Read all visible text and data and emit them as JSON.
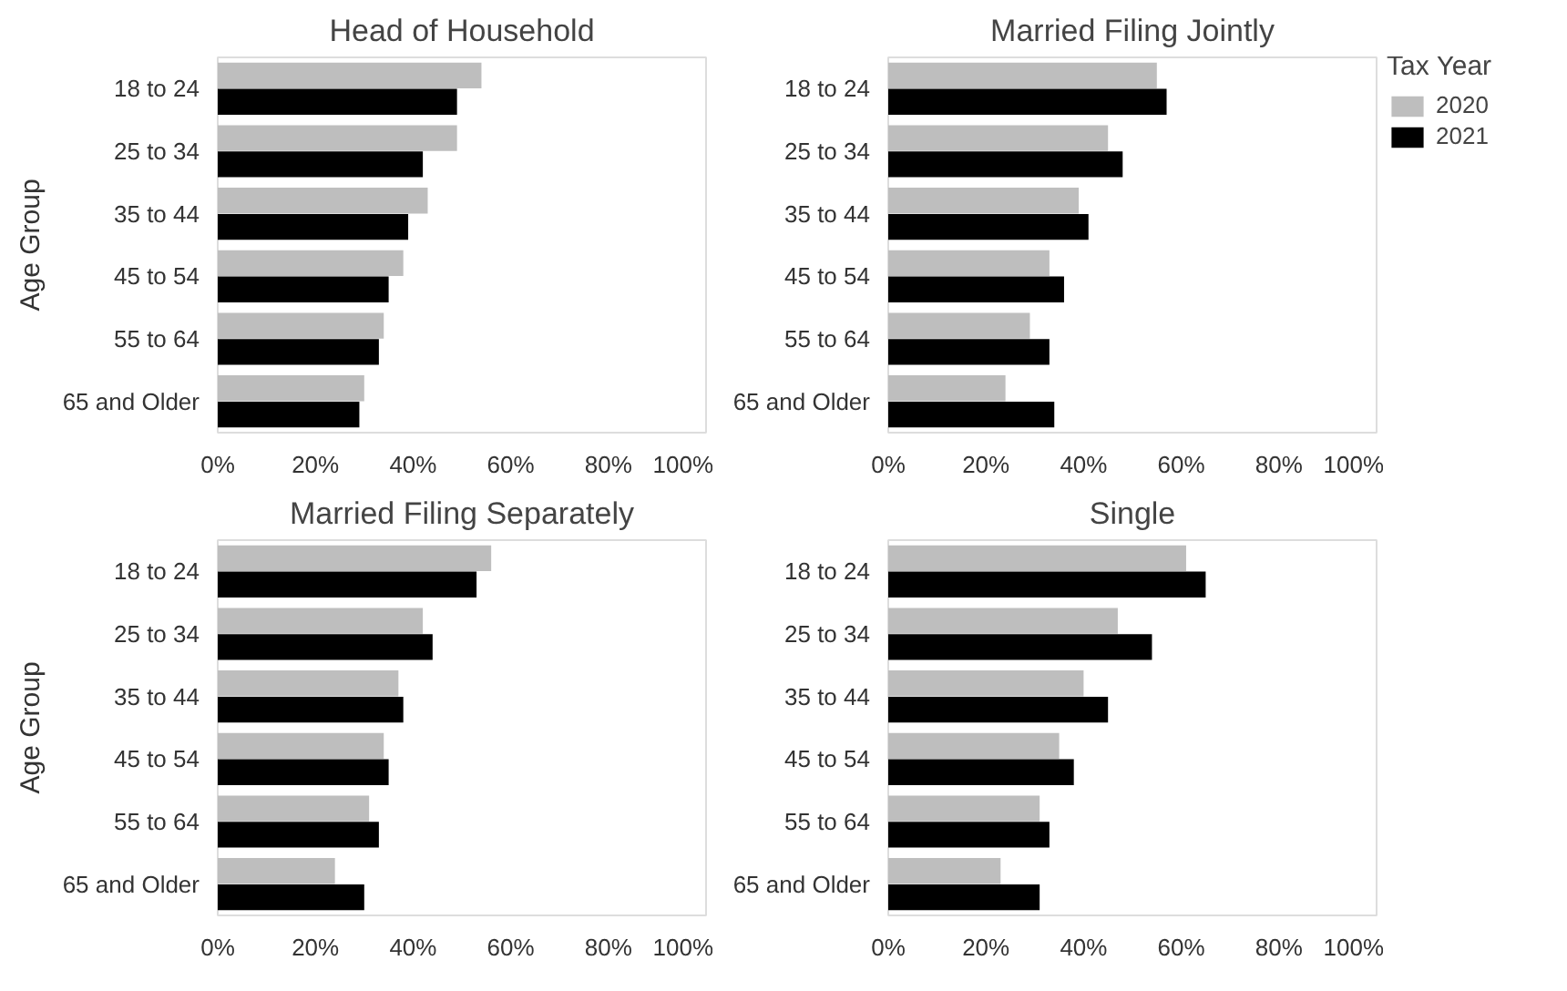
{
  "chart_data": [
    {
      "type": "bar",
      "orientation": "horizontal",
      "title": "Head of Household",
      "ylabel": "Age Group",
      "categories": [
        "18 to 24",
        "25 to 34",
        "35 to 44",
        "45 to 54",
        "55 to 64",
        "65 and Older"
      ],
      "xlim": [
        0,
        100
      ],
      "xticks": [
        {
          "value": 0,
          "label": "0%"
        },
        {
          "value": 20,
          "label": "20%"
        },
        {
          "value": 40,
          "label": "40%"
        },
        {
          "value": 60,
          "label": "60%"
        },
        {
          "value": 80,
          "label": "80%"
        },
        {
          "value": 100,
          "label": "100%"
        }
      ],
      "grid": false,
      "series": [
        {
          "color": "#bebebe",
          "values": [
            54,
            49,
            43,
            38,
            34,
            30
          ]
        },
        {
          "color": "#000000",
          "values": [
            49,
            42,
            39,
            35,
            33,
            29
          ]
        }
      ]
    },
    {
      "type": "bar",
      "orientation": "horizontal",
      "title": "Married Filing Jointly",
      "legend": "right",
      "legend_title": "Tax Year",
      "categories": [
        "18 to 24",
        "25 to 34",
        "35 to 44",
        "45 to 54",
        "55 to 64",
        "65 and Older"
      ],
      "xlim": [
        0,
        100
      ],
      "xticks": [
        {
          "value": 0,
          "label": "0%"
        },
        {
          "value": 20,
          "label": "20%"
        },
        {
          "value": 40,
          "label": "40%"
        },
        {
          "value": 60,
          "label": "60%"
        },
        {
          "value": 80,
          "label": "80%"
        },
        {
          "value": 100,
          "label": "100%"
        }
      ],
      "grid": false,
      "series": [
        {
          "name": "2020",
          "color": "#bebebe",
          "values": [
            55,
            45,
            39,
            33,
            29,
            24
          ]
        },
        {
          "name": "2021",
          "color": "#000000",
          "values": [
            57,
            48,
            41,
            36,
            33,
            34
          ]
        }
      ]
    },
    {
      "type": "bar",
      "orientation": "horizontal",
      "title": "Married Filing Separately",
      "ylabel": "Age Group",
      "categories": [
        "18 to 24",
        "25 to 34",
        "35 to 44",
        "45 to 54",
        "55 to 64",
        "65 and Older"
      ],
      "xlim": [
        0,
        100
      ],
      "xticks": [
        {
          "value": 0,
          "label": "0%"
        },
        {
          "value": 20,
          "label": "20%"
        },
        {
          "value": 40,
          "label": "40%"
        },
        {
          "value": 60,
          "label": "60%"
        },
        {
          "value": 80,
          "label": "80%"
        },
        {
          "value": 100,
          "label": "100%"
        }
      ],
      "grid": false,
      "series": [
        {
          "color": "#bebebe",
          "values": [
            56,
            42,
            37,
            34,
            31,
            24
          ]
        },
        {
          "color": "#000000",
          "values": [
            53,
            44,
            38,
            35,
            33,
            30
          ]
        }
      ]
    },
    {
      "type": "bar",
      "orientation": "horizontal",
      "title": "Single",
      "categories": [
        "18 to 24",
        "25 to 34",
        "35 to 44",
        "45 to 54",
        "55 to 64",
        "65 and Older"
      ],
      "xlim": [
        0,
        100
      ],
      "xticks": [
        {
          "value": 0,
          "label": "0%"
        },
        {
          "value": 20,
          "label": "20%"
        },
        {
          "value": 40,
          "label": "40%"
        },
        {
          "value": 60,
          "label": "60%"
        },
        {
          "value": 80,
          "label": "80%"
        },
        {
          "value": 100,
          "label": "100%"
        }
      ],
      "grid": false,
      "series": [
        {
          "color": "#bebebe",
          "values": [
            61,
            47,
            40,
            35,
            31,
            23
          ]
        },
        {
          "color": "#000000",
          "values": [
            65,
            54,
            45,
            38,
            33,
            31
          ]
        }
      ]
    }
  ]
}
